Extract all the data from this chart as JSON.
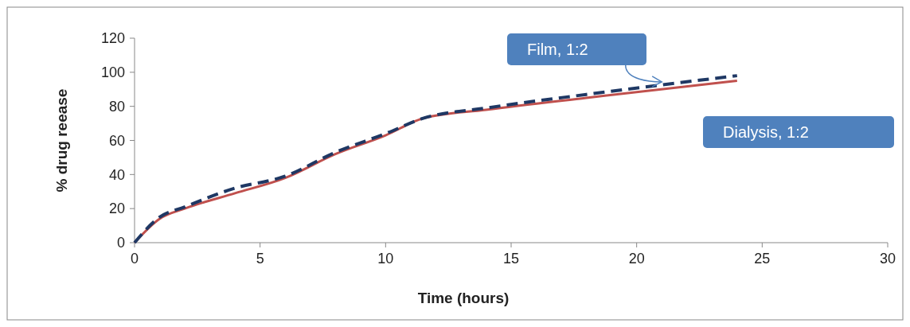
{
  "chart_data": {
    "type": "line",
    "xlabel": "Time (hours)",
    "ylabel": "% drug reease",
    "xlim": [
      0,
      30
    ],
    "xticks": [
      0,
      5,
      10,
      15,
      20,
      25,
      30
    ],
    "ylim": [
      0,
      120
    ],
    "yticks": [
      0,
      20,
      40,
      60,
      80,
      100,
      120
    ],
    "grid": false,
    "marker": "none",
    "series": [
      {
        "name": "Dialysis, 1:2",
        "color": "#c0504d",
        "line_style": "solid",
        "x": [
          0,
          1,
          2,
          4,
          6,
          8,
          10,
          11.5,
          14,
          18,
          24
        ],
        "values": [
          0,
          14,
          20,
          29,
          38,
          52,
          63,
          73,
          78,
          85,
          95
        ]
      },
      {
        "name": "Film, 1:2",
        "color": "#1f3864",
        "line_style": "dashed",
        "x": [
          0,
          1,
          2,
          4,
          6,
          8,
          10,
          11.5,
          14,
          18,
          24
        ],
        "values": [
          0,
          15,
          21,
          32,
          39,
          53,
          64,
          73,
          79,
          87,
          98
        ]
      }
    ]
  }
}
